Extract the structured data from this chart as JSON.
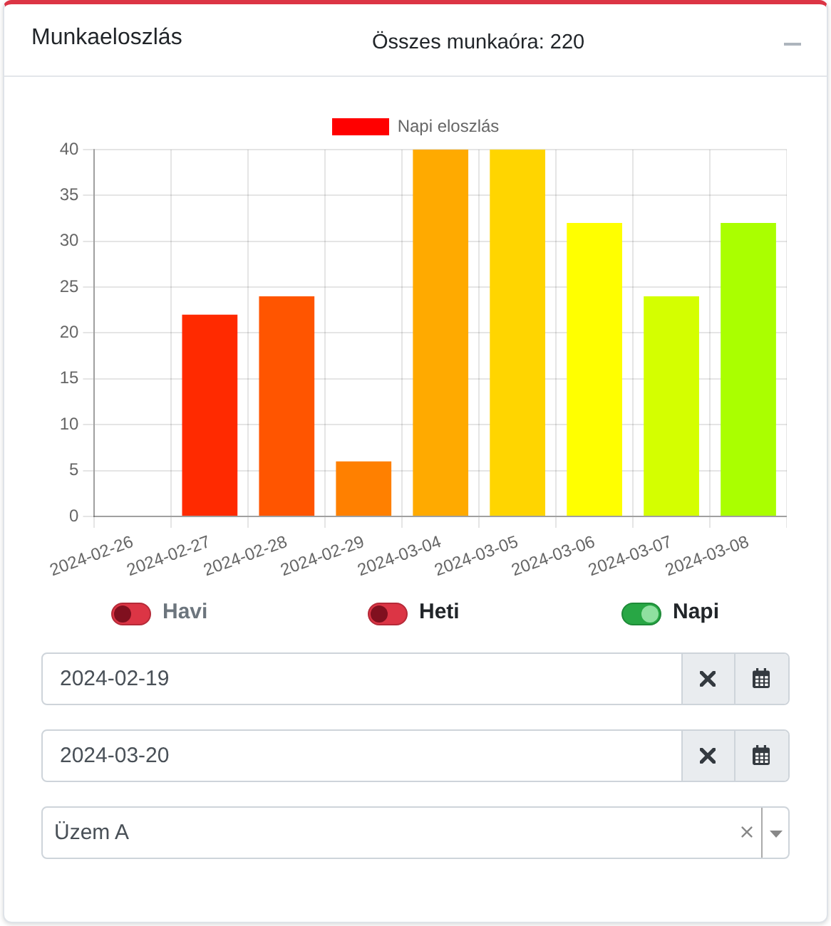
{
  "chart_data": {
    "type": "bar",
    "title": "Munkaeloszlás",
    "subtitle": "Összes munkaóra: 220",
    "categories": [
      "2024-02-26",
      "2024-02-27",
      "2024-02-28",
      "2024-02-29",
      "2024-03-04",
      "2024-03-05",
      "2024-03-06",
      "2024-03-07",
      "2024-03-08"
    ],
    "series": [
      {
        "name": "Napi eloszlás",
        "color": "#ff0000",
        "colors": [
          "#ff0000",
          "#ff2a00",
          "#ff5500",
          "#ff8000",
          "#ffaa00",
          "#ffd500",
          "#ffff00",
          "#d4ff00",
          "#aaff00"
        ],
        "values": [
          0,
          22,
          24,
          6,
          40,
          40,
          32,
          24,
          32
        ]
      }
    ],
    "ylim": [
      0,
      40
    ],
    "yticks": [
      0,
      5,
      10,
      15,
      20,
      25,
      30,
      35,
      40
    ],
    "grid": true,
    "legend": "top",
    "annotations": [
      "Havi",
      "Heti",
      "Napi",
      "2024-02-19",
      "2024-03-20",
      "Üzem A"
    ]
  }
}
